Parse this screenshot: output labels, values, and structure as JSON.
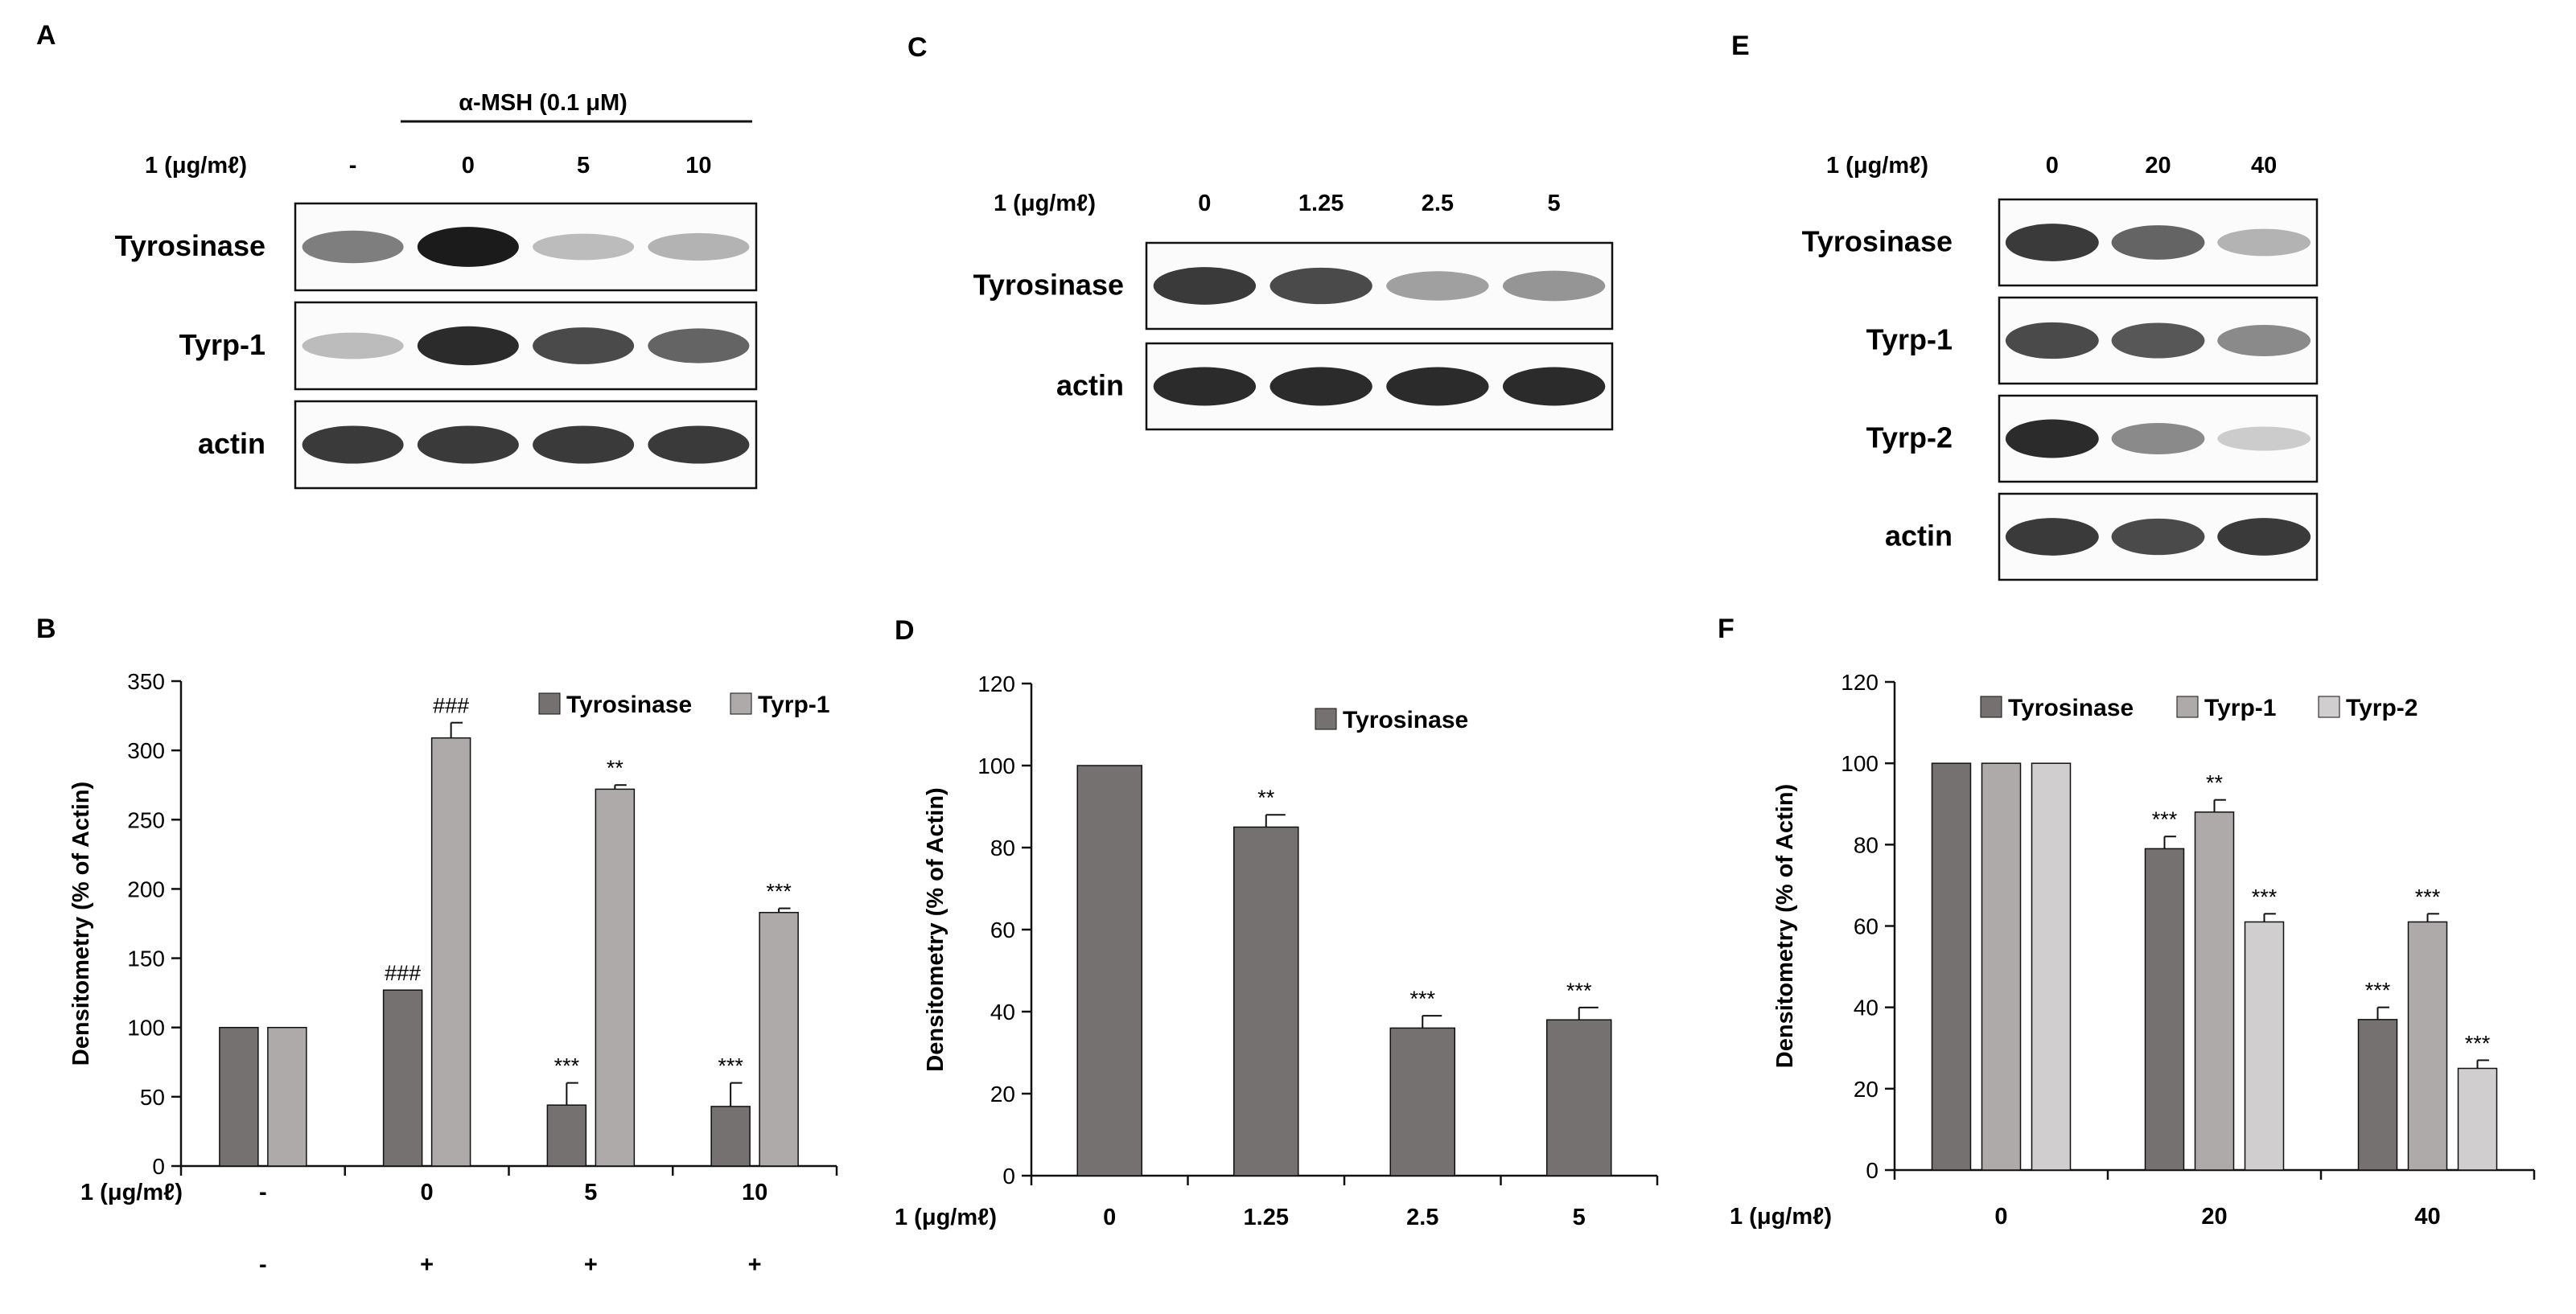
{
  "panels": {
    "A": {
      "letter": "A",
      "treatment_label": "α-MSH (0.1 μM)",
      "dose_label": "1 (μg/mℓ)",
      "lanes": [
        "-",
        "0",
        "5",
        "10"
      ],
      "blots": [
        {
          "label": "Tyrosinase",
          "bands": [
            0.65,
            1.0,
            0.35,
            0.4
          ]
        },
        {
          "label": "Tyrp-1",
          "bands": [
            0.35,
            0.95,
            0.85,
            0.75
          ]
        },
        {
          "label": "actin",
          "bands": [
            0.9,
            0.9,
            0.9,
            0.9
          ]
        }
      ]
    },
    "C": {
      "letter": "C",
      "dose_label": "1 (μg/mℓ)",
      "lanes": [
        "0",
        "1.25",
        "2.5",
        "5"
      ],
      "blots": [
        {
          "label": "Tyrosinase",
          "bands": [
            0.9,
            0.85,
            0.5,
            0.55
          ]
        },
        {
          "label": "actin",
          "bands": [
            0.95,
            0.95,
            0.95,
            0.95
          ]
        }
      ]
    },
    "E": {
      "letter": "E",
      "dose_label": "1 (μg/mℓ)",
      "lanes": [
        "0",
        "20",
        "40"
      ],
      "blots": [
        {
          "label": "Tyrosinase",
          "bands": [
            0.9,
            0.75,
            0.4
          ]
        },
        {
          "label": "Tyrp-1",
          "bands": [
            0.85,
            0.8,
            0.6
          ]
        },
        {
          "label": "Tyrp-2",
          "bands": [
            0.95,
            0.6,
            0.25
          ]
        },
        {
          "label": "actin",
          "bands": [
            0.9,
            0.85,
            0.9
          ]
        }
      ]
    }
  },
  "chart_data": [
    {
      "letter": "B",
      "type": "bar",
      "ylabel": "Densitometry (% of Actin)",
      "ylim": [
        0,
        350
      ],
      "yticks": [
        0,
        50,
        100,
        150,
        200,
        250,
        300,
        350
      ],
      "categories": [
        "-",
        "0",
        "5",
        "10"
      ],
      "row_label": "1 (μg/mℓ)",
      "second_row": [
        "-",
        "+",
        "+",
        "+"
      ],
      "legend_position": "top-right",
      "series": [
        {
          "name": "Tyrosinase",
          "color": "#767171",
          "values": [
            100,
            127,
            44,
            43
          ],
          "errors": [
            0,
            0,
            16,
            17
          ],
          "marks": [
            "",
            "###",
            "***",
            "***"
          ]
        },
        {
          "name": "Tyrp-1",
          "color": "#aeaaaa",
          "values": [
            100,
            309,
            272,
            183
          ],
          "errors": [
            0,
            11,
            3,
            3
          ],
          "marks": [
            "",
            "###",
            "**",
            "***"
          ]
        }
      ]
    },
    {
      "letter": "D",
      "type": "bar",
      "ylabel": "Densitometry (% of Actin)",
      "ylim": [
        0,
        120
      ],
      "yticks": [
        0,
        20,
        40,
        60,
        80,
        100,
        120
      ],
      "categories": [
        "0",
        "1.25",
        "2.5",
        "5"
      ],
      "row_label": "1 (μg/mℓ)",
      "second_row": [],
      "legend_position": "top-center",
      "series": [
        {
          "name": "Tyrosinase",
          "color": "#767171",
          "values": [
            100,
            85,
            36,
            38
          ],
          "errors": [
            0,
            3,
            3,
            3
          ],
          "marks": [
            "",
            "**",
            "***",
            "***"
          ]
        }
      ]
    },
    {
      "letter": "F",
      "type": "bar",
      "ylabel": "Densitometry (% of Actin)",
      "ylim": [
        0,
        120
      ],
      "yticks": [
        0,
        20,
        40,
        60,
        80,
        100,
        120
      ],
      "categories": [
        "0",
        "20",
        "40"
      ],
      "row_label": "1 (μg/mℓ)",
      "second_row": [],
      "legend_position": "top",
      "series": [
        {
          "name": "Tyrosinase",
          "color": "#767171",
          "values": [
            100,
            79,
            37
          ],
          "errors": [
            0,
            3,
            3
          ],
          "marks": [
            "",
            "***",
            "***"
          ]
        },
        {
          "name": "Tyrp-1",
          "color": "#aeaaaa",
          "values": [
            100,
            88,
            61
          ],
          "errors": [
            0,
            3,
            2
          ],
          "marks": [
            "",
            "**",
            "***"
          ]
        },
        {
          "name": "Tyrp-2",
          "color": "#d0cece",
          "values": [
            100,
            61,
            25
          ],
          "errors": [
            0,
            2,
            2
          ],
          "marks": [
            "",
            "***",
            "***"
          ]
        }
      ]
    }
  ]
}
